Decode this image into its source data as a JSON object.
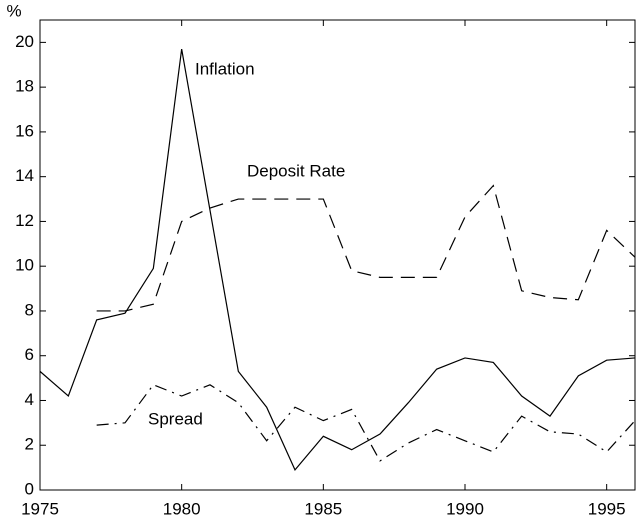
{
  "chart_data": {
    "type": "line",
    "ylabel": "%",
    "x": [
      1975,
      1976,
      1977,
      1978,
      1979,
      1980,
      1981,
      1982,
      1983,
      1984,
      1985,
      1986,
      1987,
      1988,
      1989,
      1990,
      1991,
      1992,
      1993,
      1994,
      1995,
      1996
    ],
    "series": [
      {
        "name": "Inflation",
        "color": "#000000",
        "style": "solid",
        "values": [
          5.3,
          4.2,
          7.6,
          7.9,
          9.9,
          19.7,
          12.5,
          5.3,
          3.7,
          0.9,
          2.4,
          1.8,
          2.5,
          3.9,
          5.4,
          5.9,
          5.7,
          4.2,
          3.3,
          5.1,
          5.8,
          5.9
        ]
      },
      {
        "name": "Deposit Rate",
        "color": "#000000",
        "style": "dashed",
        "values": [
          null,
          null,
          8.0,
          8.0,
          8.3,
          12.0,
          12.6,
          13.0,
          13.0,
          13.0,
          13.0,
          9.8,
          9.5,
          9.5,
          9.5,
          12.2,
          13.6,
          8.9,
          8.6,
          8.5,
          11.6,
          10.4
        ]
      },
      {
        "name": "Spread",
        "color": "#000000",
        "style": "dashdot",
        "values": [
          null,
          null,
          2.9,
          3.0,
          4.7,
          4.2,
          4.7,
          3.9,
          2.2,
          3.7,
          3.1,
          3.6,
          1.3,
          2.1,
          2.7,
          2.2,
          1.7,
          3.3,
          2.6,
          2.5,
          1.7,
          3.1
        ]
      }
    ],
    "xlim": [
      1975,
      1996
    ],
    "xticks": [
      1975,
      1980,
      1985,
      1990,
      1995
    ],
    "ylim": [
      0,
      21
    ],
    "yticks": [
      0,
      2,
      4,
      6,
      8,
      10,
      12,
      14,
      16,
      18,
      20
    ],
    "grid": false
  }
}
